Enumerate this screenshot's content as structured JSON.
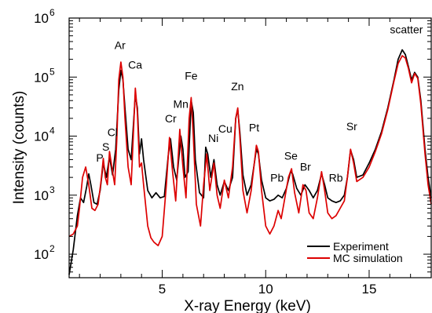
{
  "chart_data": {
    "type": "line",
    "title": "",
    "xlabel": "X-ray Energy (keV)",
    "ylabel": "Intensity (counts)",
    "xlim": [
      0.5,
      18
    ],
    "ylim": [
      40,
      1000000
    ],
    "yscale": "log",
    "x_ticks": [
      5,
      10,
      15
    ],
    "x_tick_labels": [
      "5",
      "10",
      "15"
    ],
    "y_ticks": [
      100,
      1000,
      10000,
      100000,
      1000000
    ],
    "y_tick_labels": [
      {
        "base": "10",
        "exp": "2"
      },
      {
        "base": "10",
        "exp": "3"
      },
      {
        "base": "10",
        "exp": "4"
      },
      {
        "base": "10",
        "exp": "5"
      },
      {
        "base": "10",
        "exp": "6"
      }
    ],
    "grid": false,
    "legend_position": "bottom-right",
    "series": [
      {
        "name": "Experiment",
        "color": "#000000",
        "points": [
          [
            0.5,
            45
          ],
          [
            0.7,
            120
          ],
          [
            0.9,
            450
          ],
          [
            1.05,
            900
          ],
          [
            1.2,
            750
          ],
          [
            1.35,
            1400
          ],
          [
            1.45,
            2300
          ],
          [
            1.55,
            1500
          ],
          [
            1.7,
            750
          ],
          [
            1.85,
            700
          ],
          [
            2.0,
            1200
          ],
          [
            2.15,
            3500
          ],
          [
            2.3,
            2000
          ],
          [
            2.45,
            4500
          ],
          [
            2.6,
            2200
          ],
          [
            2.75,
            6000
          ],
          [
            2.9,
            60000
          ],
          [
            3.0,
            130000
          ],
          [
            3.1,
            90000
          ],
          [
            3.2,
            30000
          ],
          [
            3.35,
            6000
          ],
          [
            3.5,
            4000
          ],
          [
            3.7,
            50000
          ],
          [
            3.8,
            30000
          ],
          [
            3.9,
            5000
          ],
          [
            4.0,
            9000
          ],
          [
            4.1,
            4000
          ],
          [
            4.3,
            1200
          ],
          [
            4.5,
            900
          ],
          [
            4.7,
            1100
          ],
          [
            4.9,
            900
          ],
          [
            5.1,
            950
          ],
          [
            5.3,
            5000
          ],
          [
            5.4,
            9000
          ],
          [
            5.55,
            3000
          ],
          [
            5.7,
            1800
          ],
          [
            5.9,
            10000
          ],
          [
            6.0,
            6000
          ],
          [
            6.1,
            2000
          ],
          [
            6.25,
            2500
          ],
          [
            6.4,
            40000
          ],
          [
            6.5,
            25000
          ],
          [
            6.6,
            4000
          ],
          [
            6.8,
            1100
          ],
          [
            7.0,
            900
          ],
          [
            7.1,
            6500
          ],
          [
            7.2,
            5000
          ],
          [
            7.35,
            2000
          ],
          [
            7.5,
            4000
          ],
          [
            7.65,
            1500
          ],
          [
            7.8,
            1000
          ],
          [
            8.0,
            1700
          ],
          [
            8.2,
            1200
          ],
          [
            8.4,
            2000
          ],
          [
            8.55,
            20000
          ],
          [
            8.65,
            28000
          ],
          [
            8.75,
            12000
          ],
          [
            8.9,
            2200
          ],
          [
            9.1,
            1000
          ],
          [
            9.3,
            1500
          ],
          [
            9.55,
            6000
          ],
          [
            9.65,
            5000
          ],
          [
            9.8,
            1800
          ],
          [
            10.0,
            900
          ],
          [
            10.2,
            800
          ],
          [
            10.4,
            850
          ],
          [
            10.6,
            1000
          ],
          [
            10.8,
            900
          ],
          [
            11.0,
            1300
          ],
          [
            11.2,
            2500
          ],
          [
            11.3,
            2300
          ],
          [
            11.5,
            1300
          ],
          [
            11.7,
            1000
          ],
          [
            11.9,
            1500
          ],
          [
            12.1,
            1200
          ],
          [
            12.3,
            900
          ],
          [
            12.5,
            1200
          ],
          [
            12.7,
            2300
          ],
          [
            12.85,
            1500
          ],
          [
            13.0,
            900
          ],
          [
            13.2,
            800
          ],
          [
            13.4,
            750
          ],
          [
            13.6,
            800
          ],
          [
            13.8,
            1000
          ],
          [
            13.95,
            2000
          ],
          [
            14.1,
            5800
          ],
          [
            14.25,
            4000
          ],
          [
            14.4,
            2000
          ],
          [
            14.7,
            2200
          ],
          [
            15.0,
            3500
          ],
          [
            15.3,
            6000
          ],
          [
            15.6,
            12000
          ],
          [
            15.9,
            30000
          ],
          [
            16.2,
            90000
          ],
          [
            16.4,
            200000
          ],
          [
            16.6,
            290000
          ],
          [
            16.75,
            240000
          ],
          [
            16.9,
            150000
          ],
          [
            17.05,
            90000
          ],
          [
            17.2,
            120000
          ],
          [
            17.35,
            100000
          ],
          [
            17.5,
            40000
          ],
          [
            17.7,
            6000
          ],
          [
            17.85,
            2000
          ],
          [
            18.0,
            900
          ]
        ]
      },
      {
        "name": "MC simulation",
        "color": "#dd0000",
        "points": [
          [
            0.5,
            200
          ],
          [
            0.7,
            220
          ],
          [
            0.9,
            300
          ],
          [
            1.0,
            600
          ],
          [
            1.15,
            2000
          ],
          [
            1.3,
            3000
          ],
          [
            1.45,
            1500
          ],
          [
            1.6,
            600
          ],
          [
            1.75,
            550
          ],
          [
            1.9,
            700
          ],
          [
            2.05,
            1800
          ],
          [
            2.15,
            4200
          ],
          [
            2.25,
            2000
          ],
          [
            2.35,
            1500
          ],
          [
            2.45,
            5500
          ],
          [
            2.6,
            2500
          ],
          [
            2.7,
            1500
          ],
          [
            2.8,
            8000
          ],
          [
            2.9,
            90000
          ],
          [
            3.0,
            180000
          ],
          [
            3.1,
            100000
          ],
          [
            3.2,
            20000
          ],
          [
            3.35,
            3000
          ],
          [
            3.5,
            1500
          ],
          [
            3.6,
            10000
          ],
          [
            3.7,
            65000
          ],
          [
            3.8,
            25000
          ],
          [
            3.9,
            3000
          ],
          [
            4.0,
            3500
          ],
          [
            4.1,
            1500
          ],
          [
            4.3,
            300
          ],
          [
            4.45,
            190
          ],
          [
            4.6,
            160
          ],
          [
            4.8,
            140
          ],
          [
            5.0,
            200
          ],
          [
            5.2,
            1500
          ],
          [
            5.35,
            9500
          ],
          [
            5.5,
            2500
          ],
          [
            5.65,
            800
          ],
          [
            5.85,
            13000
          ],
          [
            6.0,
            3000
          ],
          [
            6.15,
            900
          ],
          [
            6.3,
            20000
          ],
          [
            6.4,
            45000
          ],
          [
            6.5,
            10000
          ],
          [
            6.65,
            700
          ],
          [
            6.85,
            300
          ],
          [
            7.0,
            1500
          ],
          [
            7.15,
            5000
          ],
          [
            7.3,
            1200
          ],
          [
            7.5,
            3500
          ],
          [
            7.65,
            1000
          ],
          [
            7.8,
            600
          ],
          [
            8.0,
            1800
          ],
          [
            8.2,
            900
          ],
          [
            8.4,
            3000
          ],
          [
            8.55,
            20000
          ],
          [
            8.65,
            30000
          ],
          [
            8.75,
            10000
          ],
          [
            8.9,
            1200
          ],
          [
            9.1,
            500
          ],
          [
            9.3,
            1200
          ],
          [
            9.55,
            7000
          ],
          [
            9.65,
            5500
          ],
          [
            9.8,
            1200
          ],
          [
            10.0,
            300
          ],
          [
            10.2,
            220
          ],
          [
            10.4,
            300
          ],
          [
            10.6,
            550
          ],
          [
            10.75,
            400
          ],
          [
            10.9,
            800
          ],
          [
            11.1,
            2000
          ],
          [
            11.25,
            2800
          ],
          [
            11.4,
            1100
          ],
          [
            11.6,
            500
          ],
          [
            11.8,
            1500
          ],
          [
            11.95,
            1200
          ],
          [
            12.1,
            500
          ],
          [
            12.3,
            400
          ],
          [
            12.5,
            900
          ],
          [
            12.7,
            2500
          ],
          [
            12.85,
            1200
          ],
          [
            13.0,
            500
          ],
          [
            13.2,
            400
          ],
          [
            13.4,
            450
          ],
          [
            13.6,
            600
          ],
          [
            13.8,
            800
          ],
          [
            13.95,
            2000
          ],
          [
            14.1,
            6000
          ],
          [
            14.25,
            3500
          ],
          [
            14.4,
            1700
          ],
          [
            14.7,
            2000
          ],
          [
            15.0,
            3000
          ],
          [
            15.3,
            5500
          ],
          [
            15.6,
            11000
          ],
          [
            15.9,
            28000
          ],
          [
            16.2,
            85000
          ],
          [
            16.4,
            170000
          ],
          [
            16.6,
            230000
          ],
          [
            16.75,
            210000
          ],
          [
            16.9,
            140000
          ],
          [
            17.05,
            80000
          ],
          [
            17.2,
            115000
          ],
          [
            17.35,
            95000
          ],
          [
            17.5,
            35000
          ],
          [
            17.7,
            5000
          ],
          [
            17.85,
            1500
          ],
          [
            18.0,
            700
          ]
        ]
      }
    ],
    "annotations": [
      {
        "text": "P",
        "x": 1.98,
        "y": 3700
      },
      {
        "text": "S",
        "x": 2.27,
        "y": 5700
      },
      {
        "text": "Cl",
        "x": 2.6,
        "y": 10000
      },
      {
        "text": "Ar",
        "x": 2.96,
        "y": 300000
      },
      {
        "text": "Ca",
        "x": 3.69,
        "y": 140000
      },
      {
        "text": "Cr",
        "x": 5.41,
        "y": 17000
      },
      {
        "text": "Mn",
        "x": 5.9,
        "y": 30000
      },
      {
        "text": "Fe",
        "x": 6.4,
        "y": 90000
      },
      {
        "text": "Ni",
        "x": 7.47,
        "y": 8000
      },
      {
        "text": "Cu",
        "x": 8.05,
        "y": 11500
      },
      {
        "text": "Zn",
        "x": 8.64,
        "y": 60000
      },
      {
        "text": "Pt",
        "x": 9.44,
        "y": 12000
      },
      {
        "text": "Pb",
        "x": 10.55,
        "y": 1700
      },
      {
        "text": "Se",
        "x": 11.22,
        "y": 4000
      },
      {
        "text": "Br",
        "x": 11.92,
        "y": 2600
      },
      {
        "text": "Rb",
        "x": 13.39,
        "y": 1700
      },
      {
        "text": "Sr",
        "x": 14.16,
        "y": 12500
      },
      {
        "text": "scatter",
        "x": 16.8,
        "y": 550000
      }
    ]
  }
}
